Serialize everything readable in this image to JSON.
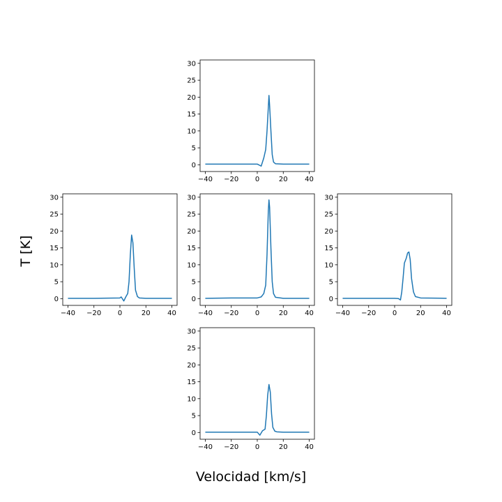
{
  "figure": {
    "xlabel": "Velocidad [km/s]",
    "ylabel": "T [K]"
  },
  "colors": {
    "line": "#1f77b4",
    "axes": "#000000",
    "background": "#ffffff"
  },
  "chart_data": [
    {
      "type": "line",
      "position": "top",
      "xlim": [
        -44,
        44
      ],
      "ylim": [
        -2,
        31
      ],
      "xticks": [
        -40,
        -20,
        0,
        20,
        40
      ],
      "yticks": [
        0,
        5,
        10,
        15,
        20,
        25,
        30
      ],
      "grid": false,
      "x": [
        -40,
        -20,
        0,
        3,
        5,
        6.5,
        7.5,
        8.5,
        9,
        9.5,
        10.5,
        11.5,
        12.5,
        14,
        20,
        40
      ],
      "y": [
        0.2,
        0.2,
        0.2,
        -0.4,
        2,
        4.5,
        10,
        17,
        20.5,
        17.5,
        10,
        3,
        0.8,
        0.3,
        0.2,
        0.2
      ]
    },
    {
      "type": "line",
      "position": "left",
      "xlim": [
        -44,
        44
      ],
      "ylim": [
        -2,
        31
      ],
      "xticks": [
        -40,
        -20,
        0,
        20,
        40
      ],
      "yticks": [
        0,
        5,
        10,
        15,
        20,
        25,
        30
      ],
      "grid": false,
      "x": [
        -40,
        -20,
        0,
        1,
        3,
        4.5,
        6,
        7,
        8,
        9,
        10,
        11,
        12,
        13.5,
        15,
        20,
        40
      ],
      "y": [
        0.1,
        0.1,
        0.2,
        0.5,
        -0.7,
        0.5,
        1.5,
        5,
        13,
        18.8,
        16.5,
        9,
        2.5,
        0.6,
        0.2,
        0.1,
        0.1
      ]
    },
    {
      "type": "line",
      "position": "center",
      "xlim": [
        -44,
        44
      ],
      "ylim": [
        -2,
        31
      ],
      "xticks": [
        -40,
        -20,
        0,
        20,
        40
      ],
      "yticks": [
        0,
        5,
        10,
        15,
        20,
        25,
        30
      ],
      "grid": false,
      "x": [
        -40,
        -20,
        0,
        3,
        5,
        6.5,
        7.5,
        8.5,
        9,
        9.5,
        10.5,
        11.5,
        12.5,
        14,
        20,
        40
      ],
      "y": [
        0.1,
        0.2,
        0.2,
        0.5,
        1.5,
        4,
        13,
        26,
        29.2,
        27,
        15,
        5,
        1.5,
        0.4,
        0.1,
        0.1
      ]
    },
    {
      "type": "line",
      "position": "right",
      "xlim": [
        -44,
        44
      ],
      "ylim": [
        -2,
        31
      ],
      "xticks": [
        -40,
        -20,
        0,
        20,
        40
      ],
      "yticks": [
        0,
        5,
        10,
        15,
        20,
        25,
        30
      ],
      "grid": false,
      "x": [
        -40,
        -20,
        0,
        3,
        4.5,
        5.5,
        6.5,
        7.5,
        9,
        10,
        11,
        12,
        13,
        14.5,
        16,
        20,
        40
      ],
      "y": [
        0.1,
        0.1,
        0.1,
        0,
        -0.4,
        2,
        6,
        10.5,
        12,
        13.5,
        13.8,
        11.5,
        6,
        2,
        0.6,
        0.2,
        0.1
      ]
    },
    {
      "type": "line",
      "position": "bottom",
      "xlim": [
        -44,
        44
      ],
      "ylim": [
        -2,
        31
      ],
      "xticks": [
        -40,
        -20,
        0,
        20,
        40
      ],
      "yticks": [
        0,
        5,
        10,
        15,
        20,
        25,
        30
      ],
      "grid": false,
      "x": [
        -40,
        -20,
        0,
        2,
        4,
        6,
        7,
        8,
        9,
        10,
        11,
        12,
        13.5,
        15,
        20,
        40
      ],
      "y": [
        0.1,
        0.1,
        0.1,
        -0.8,
        0.5,
        1,
        5,
        11,
        14.2,
        12,
        5.5,
        1.5,
        0.4,
        0.2,
        0.1,
        0.1
      ]
    }
  ]
}
